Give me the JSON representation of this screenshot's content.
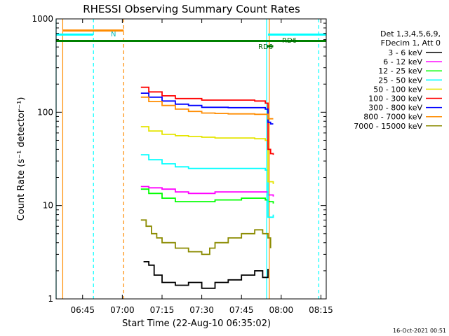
{
  "chart_data": {
    "type": "line",
    "title": "RHESSI Observing Summary Count Rates",
    "xlabel": "Start Time (22-Aug-10 06:35:02)",
    "ylabel": "Count Rate (s⁻¹ detector⁻¹)",
    "timestamp": "16-Oct-2021 00:51",
    "x_range_minutes": [
      0,
      102
    ],
    "ylim": [
      1,
      1000
    ],
    "y_scale": "log",
    "x_ticks": [
      {
        "t": 10,
        "label": "06:45"
      },
      {
        "t": 25,
        "label": "07:00"
      },
      {
        "t": 40,
        "label": "07:15"
      },
      {
        "t": 55,
        "label": "07:30"
      },
      {
        "t": 70,
        "label": "07:45"
      },
      {
        "t": 85,
        "label": "08:00"
      },
      {
        "t": 100,
        "label": "08:15"
      }
    ],
    "y_ticks": [
      {
        "v": 1,
        "label": "1"
      },
      {
        "v": 10,
        "label": "10"
      },
      {
        "v": 100,
        "label": "100"
      },
      {
        "v": 1000,
        "label": "1000"
      }
    ],
    "legend_header": [
      "Det 1,3,4,5,6,9,",
      "FDecim 1, Att 0"
    ],
    "series": [
      {
        "name": "3 - 6 keV",
        "color": "#000000",
        "x": [
          33,
          35,
          37,
          40,
          45,
          50,
          55,
          60,
          65,
          70,
          75,
          78,
          80
        ],
        "y": [
          2.5,
          2.3,
          1.8,
          1.5,
          1.4,
          1.5,
          1.3,
          1.5,
          1.6,
          1.8,
          2.0,
          1.7,
          2.1
        ]
      },
      {
        "name": "6 - 12 keV",
        "color": "#ff00ff",
        "x": [
          32,
          35,
          40,
          45,
          50,
          55,
          60,
          65,
          70,
          75,
          79,
          80,
          82
        ],
        "y": [
          16,
          15.5,
          15,
          14,
          13.5,
          13.5,
          14,
          14,
          14,
          14,
          14,
          13,
          12.5
        ]
      },
      {
        "name": "12 - 25 keV",
        "color": "#00ff00",
        "x": [
          32,
          35,
          40,
          45,
          50,
          55,
          60,
          65,
          70,
          75,
          79,
          80,
          82
        ],
        "y": [
          15,
          13.5,
          12,
          11,
          11,
          11,
          11.5,
          11.5,
          12,
          12,
          11.5,
          11,
          10.5
        ]
      },
      {
        "name": "25 - 50 keV",
        "color": "#00ffff",
        "x": [
          32,
          35,
          40,
          45,
          50,
          55,
          60,
          65,
          70,
          75,
          79,
          80,
          82
        ],
        "y": [
          35,
          31,
          28,
          26,
          25,
          25,
          25,
          25,
          25,
          25,
          24,
          7.5,
          8
        ]
      },
      {
        "name": "50 - 100 keV",
        "color": "#e5e500",
        "x": [
          32,
          35,
          40,
          45,
          50,
          55,
          60,
          65,
          70,
          75,
          79,
          80,
          82
        ],
        "y": [
          70,
          63,
          58,
          56,
          55,
          54,
          53,
          53,
          53,
          52,
          50,
          18,
          17
        ]
      },
      {
        "name": "100 - 300 keV",
        "color": "#ff0000",
        "x": [
          32,
          35,
          40,
          45,
          50,
          55,
          60,
          65,
          70,
          75,
          79,
          80,
          81,
          82
        ],
        "y": [
          185,
          165,
          150,
          140,
          140,
          135,
          135,
          135,
          135,
          132,
          125,
          40,
          36,
          35
        ]
      },
      {
        "name": "300 - 800 keV",
        "color": "#0000ff",
        "x": [
          32,
          35,
          40,
          45,
          50,
          55,
          60,
          65,
          70,
          75,
          79,
          80,
          81,
          82
        ],
        "y": [
          160,
          145,
          132,
          122,
          118,
          113,
          113,
          112,
          112,
          112,
          108,
          78,
          75,
          75
        ]
      },
      {
        "name": "800 - 7000 keV",
        "color": "#ff8c00",
        "x": [
          32,
          35,
          40,
          45,
          50,
          55,
          60,
          65,
          70,
          75,
          79,
          80,
          82
        ],
        "y": [
          145,
          130,
          118,
          108,
          102,
          98,
          97,
          96,
          96,
          95,
          95,
          85,
          85
        ]
      },
      {
        "name": "7000 - 15000 keV",
        "color": "#8b8b00",
        "x": [
          32,
          34,
          36,
          38,
          40,
          45,
          50,
          55,
          58,
          60,
          65,
          70,
          75,
          78,
          80,
          81
        ],
        "y": [
          7,
          6,
          5,
          4.5,
          4,
          3.5,
          3.2,
          3.0,
          3.5,
          4,
          4.5,
          5,
          5.5,
          5,
          4.5,
          3.5
        ]
      }
    ],
    "flags": [
      {
        "label": "N",
        "color": "#00ffff"
      },
      {
        "label": "RD6",
        "color": "#008000"
      },
      {
        "label": "RD6",
        "color": "#008000"
      }
    ],
    "spans": [
      {
        "name": "orange-bar",
        "color": "#ff8c00",
        "x0": 2.5,
        "x1": 25.5,
        "y": 750
      },
      {
        "name": "cyan-bar-left",
        "color": "#00ffff",
        "x0": 0,
        "x1": 14,
        "y": 680
      },
      {
        "name": "cyan-bar-right",
        "color": "#00ffff",
        "x0": 80,
        "x1": 102,
        "y": 680
      },
      {
        "name": "green-bar",
        "color": "#008000",
        "x0": 0,
        "x1": 102,
        "y": 580
      },
      {
        "name": "green-rd6-bar",
        "color": "#008000",
        "x0": 79.5,
        "x1": 82,
        "y": 510
      }
    ],
    "vlines": [
      {
        "name": "vline-cyan-0",
        "color": "#00ffff",
        "t": 0,
        "dashed": false
      },
      {
        "name": "vline-orange-2",
        "color": "#ff8c00",
        "t": 2.5,
        "dashed": false
      },
      {
        "name": "vline-cyan-14",
        "color": "#00ffff",
        "t": 14.1,
        "dashed": true
      },
      {
        "name": "vline-orange-25",
        "color": "#ff8c00",
        "t": 25.5,
        "dashed": true
      },
      {
        "name": "vline-cyan-80",
        "color": "#00ffff",
        "t": 79.5,
        "dashed": false
      },
      {
        "name": "vline-orange-80",
        "color": "#ff8c00",
        "t": 80.5,
        "dashed": false
      },
      {
        "name": "vline-cyan-99",
        "color": "#00ffff",
        "t": 99.2,
        "dashed": true
      }
    ]
  }
}
